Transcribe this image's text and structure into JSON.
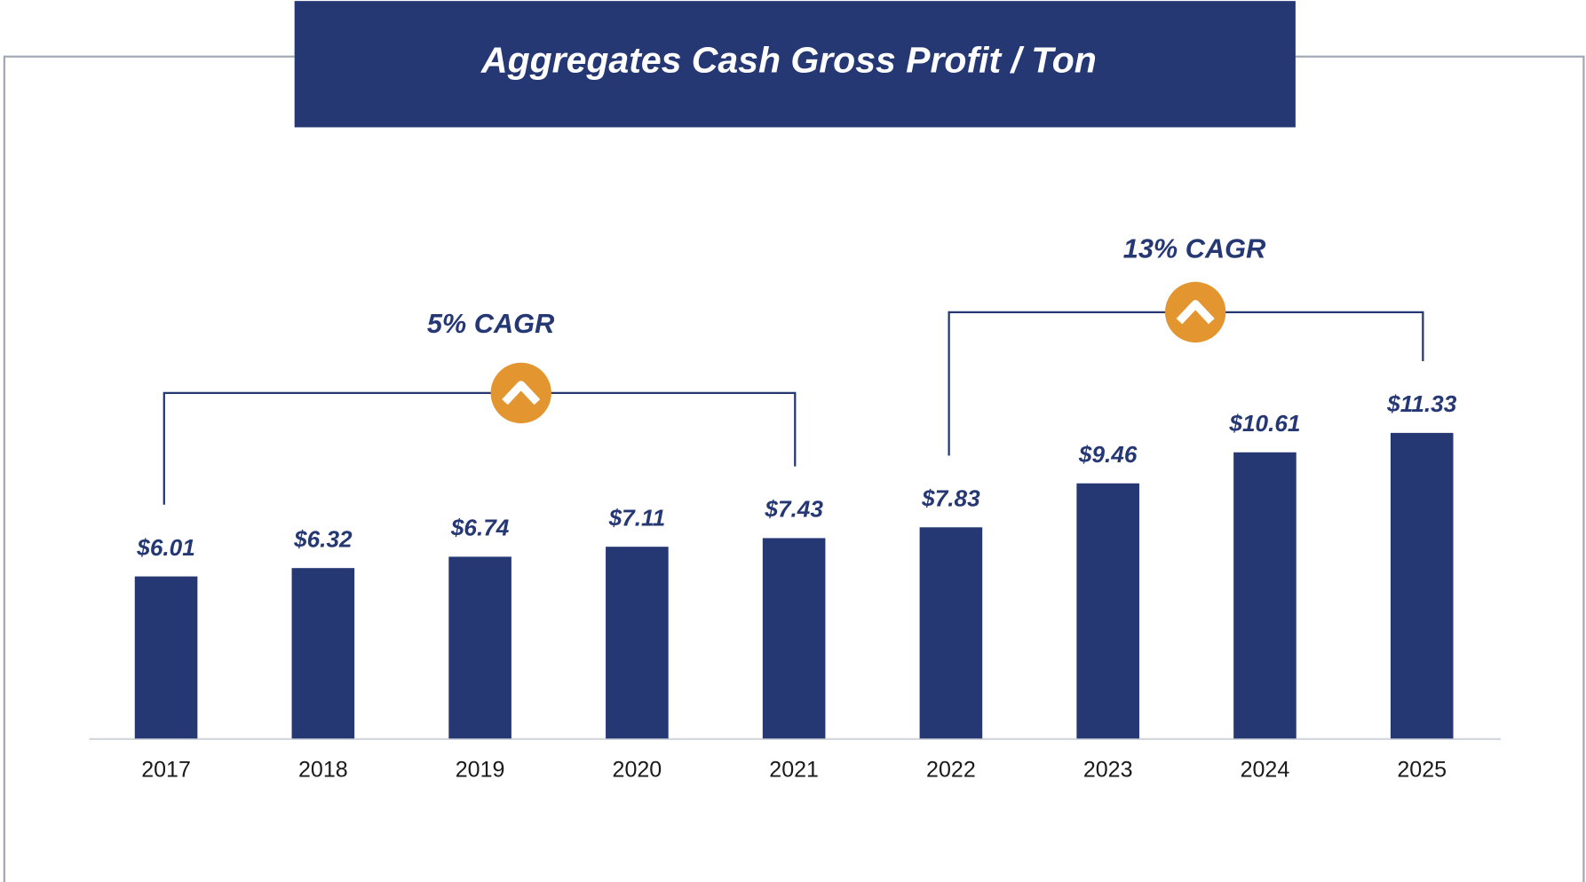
{
  "chart_data": {
    "type": "bar",
    "title": "Aggregates Cash Gross Profit / Ton",
    "categories": [
      "2017",
      "2018",
      "2019",
      "2020",
      "2021",
      "2022",
      "2023",
      "2024",
      "2025"
    ],
    "values": [
      6.01,
      6.32,
      6.74,
      7.11,
      7.43,
      7.83,
      9.46,
      10.61,
      11.33
    ],
    "value_labels": [
      "$6.01",
      "$6.32",
      "$6.74",
      "$7.11",
      "$7.43",
      "$7.83",
      "$9.46",
      "$10.61",
      "$11.33"
    ],
    "color": "#253874",
    "annotations": [
      "5% CAGR",
      "13% CAGR"
    ]
  }
}
